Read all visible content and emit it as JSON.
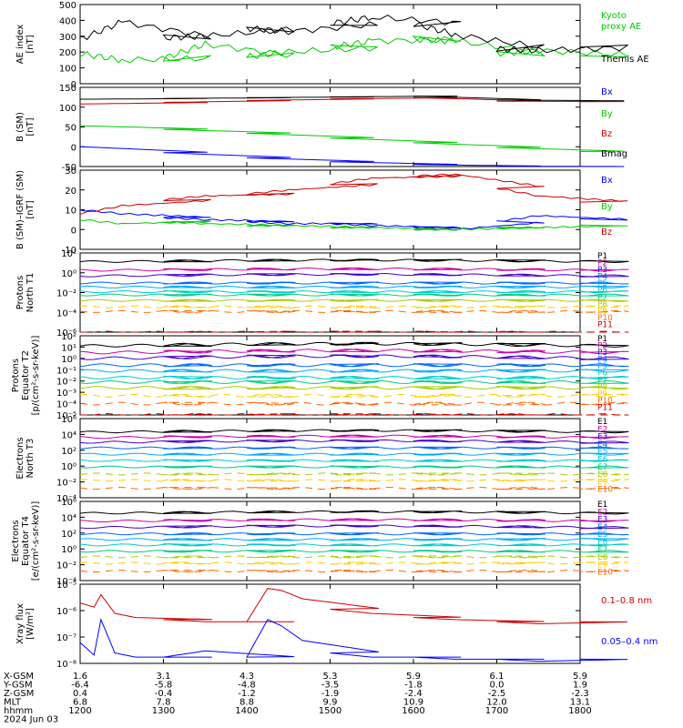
{
  "chart_data": [
    {
      "type": "line",
      "ylabel": "AE index\n[nT]",
      "yticks": [
        "0",
        "100",
        "200",
        "300",
        "400",
        "500"
      ],
      "ylim": [
        0,
        500
      ],
      "log": false,
      "x": [
        1200,
        1230,
        1300,
        1330,
        1400,
        1430,
        1500,
        1530,
        1600,
        1630,
        1700,
        1730,
        1800
      ],
      "series": [
        {
          "name": "Kyoto\nproxy AE",
          "color": "#00cc00",
          "values": [
            190,
            150,
            160,
            250,
            170,
            200,
            230,
            270,
            280,
            270,
            190,
            210,
            180
          ]
        },
        {
          "name": "Themis AE",
          "color": "#000000",
          "values": [
            280,
            390,
            290,
            300,
            350,
            330,
            380,
            420,
            380,
            310,
            220,
            210,
            230
          ]
        }
      ]
    },
    {
      "type": "line",
      "ylabel": "B (SM)\n[nT]",
      "yticks": [
        "-50",
        "0",
        "50",
        "100",
        "150"
      ],
      "ylim": [
        -50,
        150
      ],
      "log": false,
      "x": [
        1200,
        1300,
        1400,
        1500,
        1600,
        1700,
        1800
      ],
      "series": [
        {
          "name": "Bx",
          "color": "#0000ff",
          "values": [
            0,
            -15,
            -28,
            -38,
            -45,
            -49,
            -50
          ]
        },
        {
          "name": "By",
          "color": "#00cc00",
          "values": [
            53,
            44,
            34,
            22,
            10,
            -2,
            -12
          ]
        },
        {
          "name": "Bz",
          "color": "#cc0000",
          "values": [
            108,
            112,
            117,
            121,
            124,
            115,
            114
          ]
        },
        {
          "name": "Bmag",
          "color": "#000000",
          "values": [
            120,
            122,
            124,
            126,
            128,
            118,
            116
          ]
        }
      ]
    },
    {
      "type": "line",
      "ylabel": "B (SM)–IGRF (SM)\n[nT]",
      "yticks": [
        "-10",
        "0",
        "10",
        "20",
        "30"
      ],
      "ylim": [
        -10,
        30
      ],
      "log": false,
      "x": [
        1200,
        1230,
        1300,
        1330,
        1400,
        1430,
        1500,
        1530,
        1600,
        1630,
        1700,
        1730,
        1800
      ],
      "series": [
        {
          "name": "Bx",
          "color": "#0000ff",
          "values": [
            10,
            8,
            6,
            5,
            4,
            3,
            3,
            2,
            1,
            0,
            4,
            7,
            5
          ]
        },
        {
          "name": "By",
          "color": "#00cc00",
          "values": [
            5,
            3,
            4,
            3,
            2,
            2,
            1,
            1,
            0,
            0,
            1,
            1,
            2
          ]
        },
        {
          "name": "Bz",
          "color": "#cc0000",
          "values": [
            8,
            12,
            15,
            17,
            18,
            20,
            23,
            26,
            27,
            28,
            21,
            17,
            14
          ]
        }
      ]
    },
    {
      "type": "line",
      "ylabel": "Protons\nNorth T1",
      "yticks": [
        "10⁻⁶",
        "10⁻⁴",
        "10⁻²",
        "10⁰",
        "10²"
      ],
      "ylim": [
        -7,
        3
      ],
      "log": true,
      "levels": [
        1.9,
        0.8,
        0.1,
        -0.8,
        -1.3,
        -1.9,
        -2.3,
        -3.0,
        -3.8,
        -4.4,
        -7.0
      ],
      "series_names": [
        "P1",
        "P2",
        "P3",
        "P4",
        "P5",
        "P6",
        "P7",
        "P8",
        "P9",
        "P10",
        "P11"
      ]
    },
    {
      "type": "line",
      "ylabel": "Protons\nEquator T2\n[p/(cm²-s-sr-keV)]",
      "yticks": [
        "10⁻⁵",
        "10⁻⁴",
        "10⁻³",
        "10⁻²",
        "10⁻¹",
        "10⁰",
        "10¹",
        "10²"
      ],
      "ylim": [
        -5,
        2
      ],
      "log": true,
      "levels": [
        1.1,
        0.5,
        0.0,
        -0.6,
        -1.1,
        -1.7,
        -2.1,
        -2.6,
        -3.3,
        -4.0,
        -5.0
      ],
      "series_names": [
        "P1",
        "P2",
        "P3",
        "P4",
        "P5",
        "P6",
        "P7",
        "P8",
        "P9",
        "P10",
        "P11"
      ]
    },
    {
      "type": "line",
      "ylabel": "Electrons\nNorth T3",
      "yticks": [
        "10⁻⁴",
        "10⁻²",
        "10⁰",
        "10²",
        "10⁴",
        "10⁶"
      ],
      "ylim": [
        -4,
        6
      ],
      "log": true,
      "levels": [
        4.3,
        3.6,
        3.0,
        2.3,
        1.5,
        0.7,
        -0.1,
        -1.0,
        -1.8,
        -2.8
      ],
      "series_names": [
        "E1",
        "E2",
        "E3",
        "E4",
        "E5",
        "E6",
        "E7",
        "E8",
        "E9",
        "E10"
      ]
    },
    {
      "type": "line",
      "ylabel": "Electrons\nEquator T4\n[e/(cm²-s-sr-keV)]",
      "yticks": [
        "10⁻⁴",
        "10⁻²",
        "10⁰",
        "10²",
        "10⁴",
        "10⁶"
      ],
      "ylim": [
        -4,
        6
      ],
      "log": true,
      "levels": [
        4.5,
        3.5,
        2.7,
        1.9,
        1.2,
        0.5,
        -0.3,
        -1.0,
        -1.8,
        -2.8
      ],
      "series_names": [
        "E1",
        "E2",
        "E3",
        "E4",
        "E5",
        "E6",
        "E7",
        "E8",
        "E9",
        "E10"
      ]
    },
    {
      "type": "line",
      "ylabel": "Xray flux\n[W/m²]",
      "yticks": [
        "10⁻⁸",
        "10⁻⁷",
        "10⁻⁶",
        "10⁻⁵"
      ],
      "ylim": [
        -8.3,
        -4.5
      ],
      "log": true,
      "x": [
        1200,
        1210,
        1215,
        1225,
        1240,
        1300,
        1330,
        1400,
        1415,
        1425,
        1440,
        1500,
        1530,
        1600,
        1630,
        1700,
        1730,
        1800
      ],
      "series": [
        {
          "name": "0.1–0.8 nm",
          "color": "#cc0000",
          "values": [
            -5.4,
            -5.6,
            -5.0,
            -5.9,
            -6.1,
            -6.2,
            -6.3,
            -6.3,
            -4.7,
            -4.8,
            -5.2,
            -5.7,
            -5.9,
            -6.1,
            -6.2,
            -6.3,
            -6.4,
            -6.3
          ]
        },
        {
          "name": "0.05–0.4 nm",
          "color": "#0000ff",
          "values": [
            -7.3,
            -7.9,
            -6.2,
            -7.8,
            -8.0,
            -8.0,
            -7.7,
            -8.0,
            -6.2,
            -6.5,
            -7.2,
            -7.8,
            -8.0,
            -8.0,
            -8.1,
            -8.1,
            -8.2,
            -8.1
          ]
        }
      ]
    }
  ],
  "positions": {
    "rows": [
      "X-GSM",
      "Y-GSM",
      "Z-GSM",
      "MLT",
      "hhmm"
    ],
    "columns": [
      [
        "1.6",
        "-6.4",
        "0.4",
        "6.8",
        "1200"
      ],
      [
        "3.1",
        "-5.8",
        "-0.4",
        "7.8",
        "1300"
      ],
      [
        "4.3",
        "-4.8",
        "-1.2",
        "8.8",
        "1400"
      ],
      [
        "5.3",
        "-3.5",
        "-1.9",
        "9.9",
        "1500"
      ],
      [
        "5.9",
        "-1.8",
        "-2.4",
        "10.9",
        "1600"
      ],
      [
        "6.1",
        "0.0",
        "-2.5",
        "12.0",
        "1700"
      ],
      [
        "5.9",
        "1.9",
        "-2.3",
        "13.1",
        "1800"
      ]
    ],
    "date": "2024 Jun 03"
  },
  "line_colors": [
    "#000000",
    "#cc00aa",
    "#4400cc",
    "#0066ff",
    "#00aaff",
    "#00cccc",
    "#00cc88",
    "#aacc00",
    "#ffcc00",
    "#ff6600",
    "#cc0000"
  ]
}
